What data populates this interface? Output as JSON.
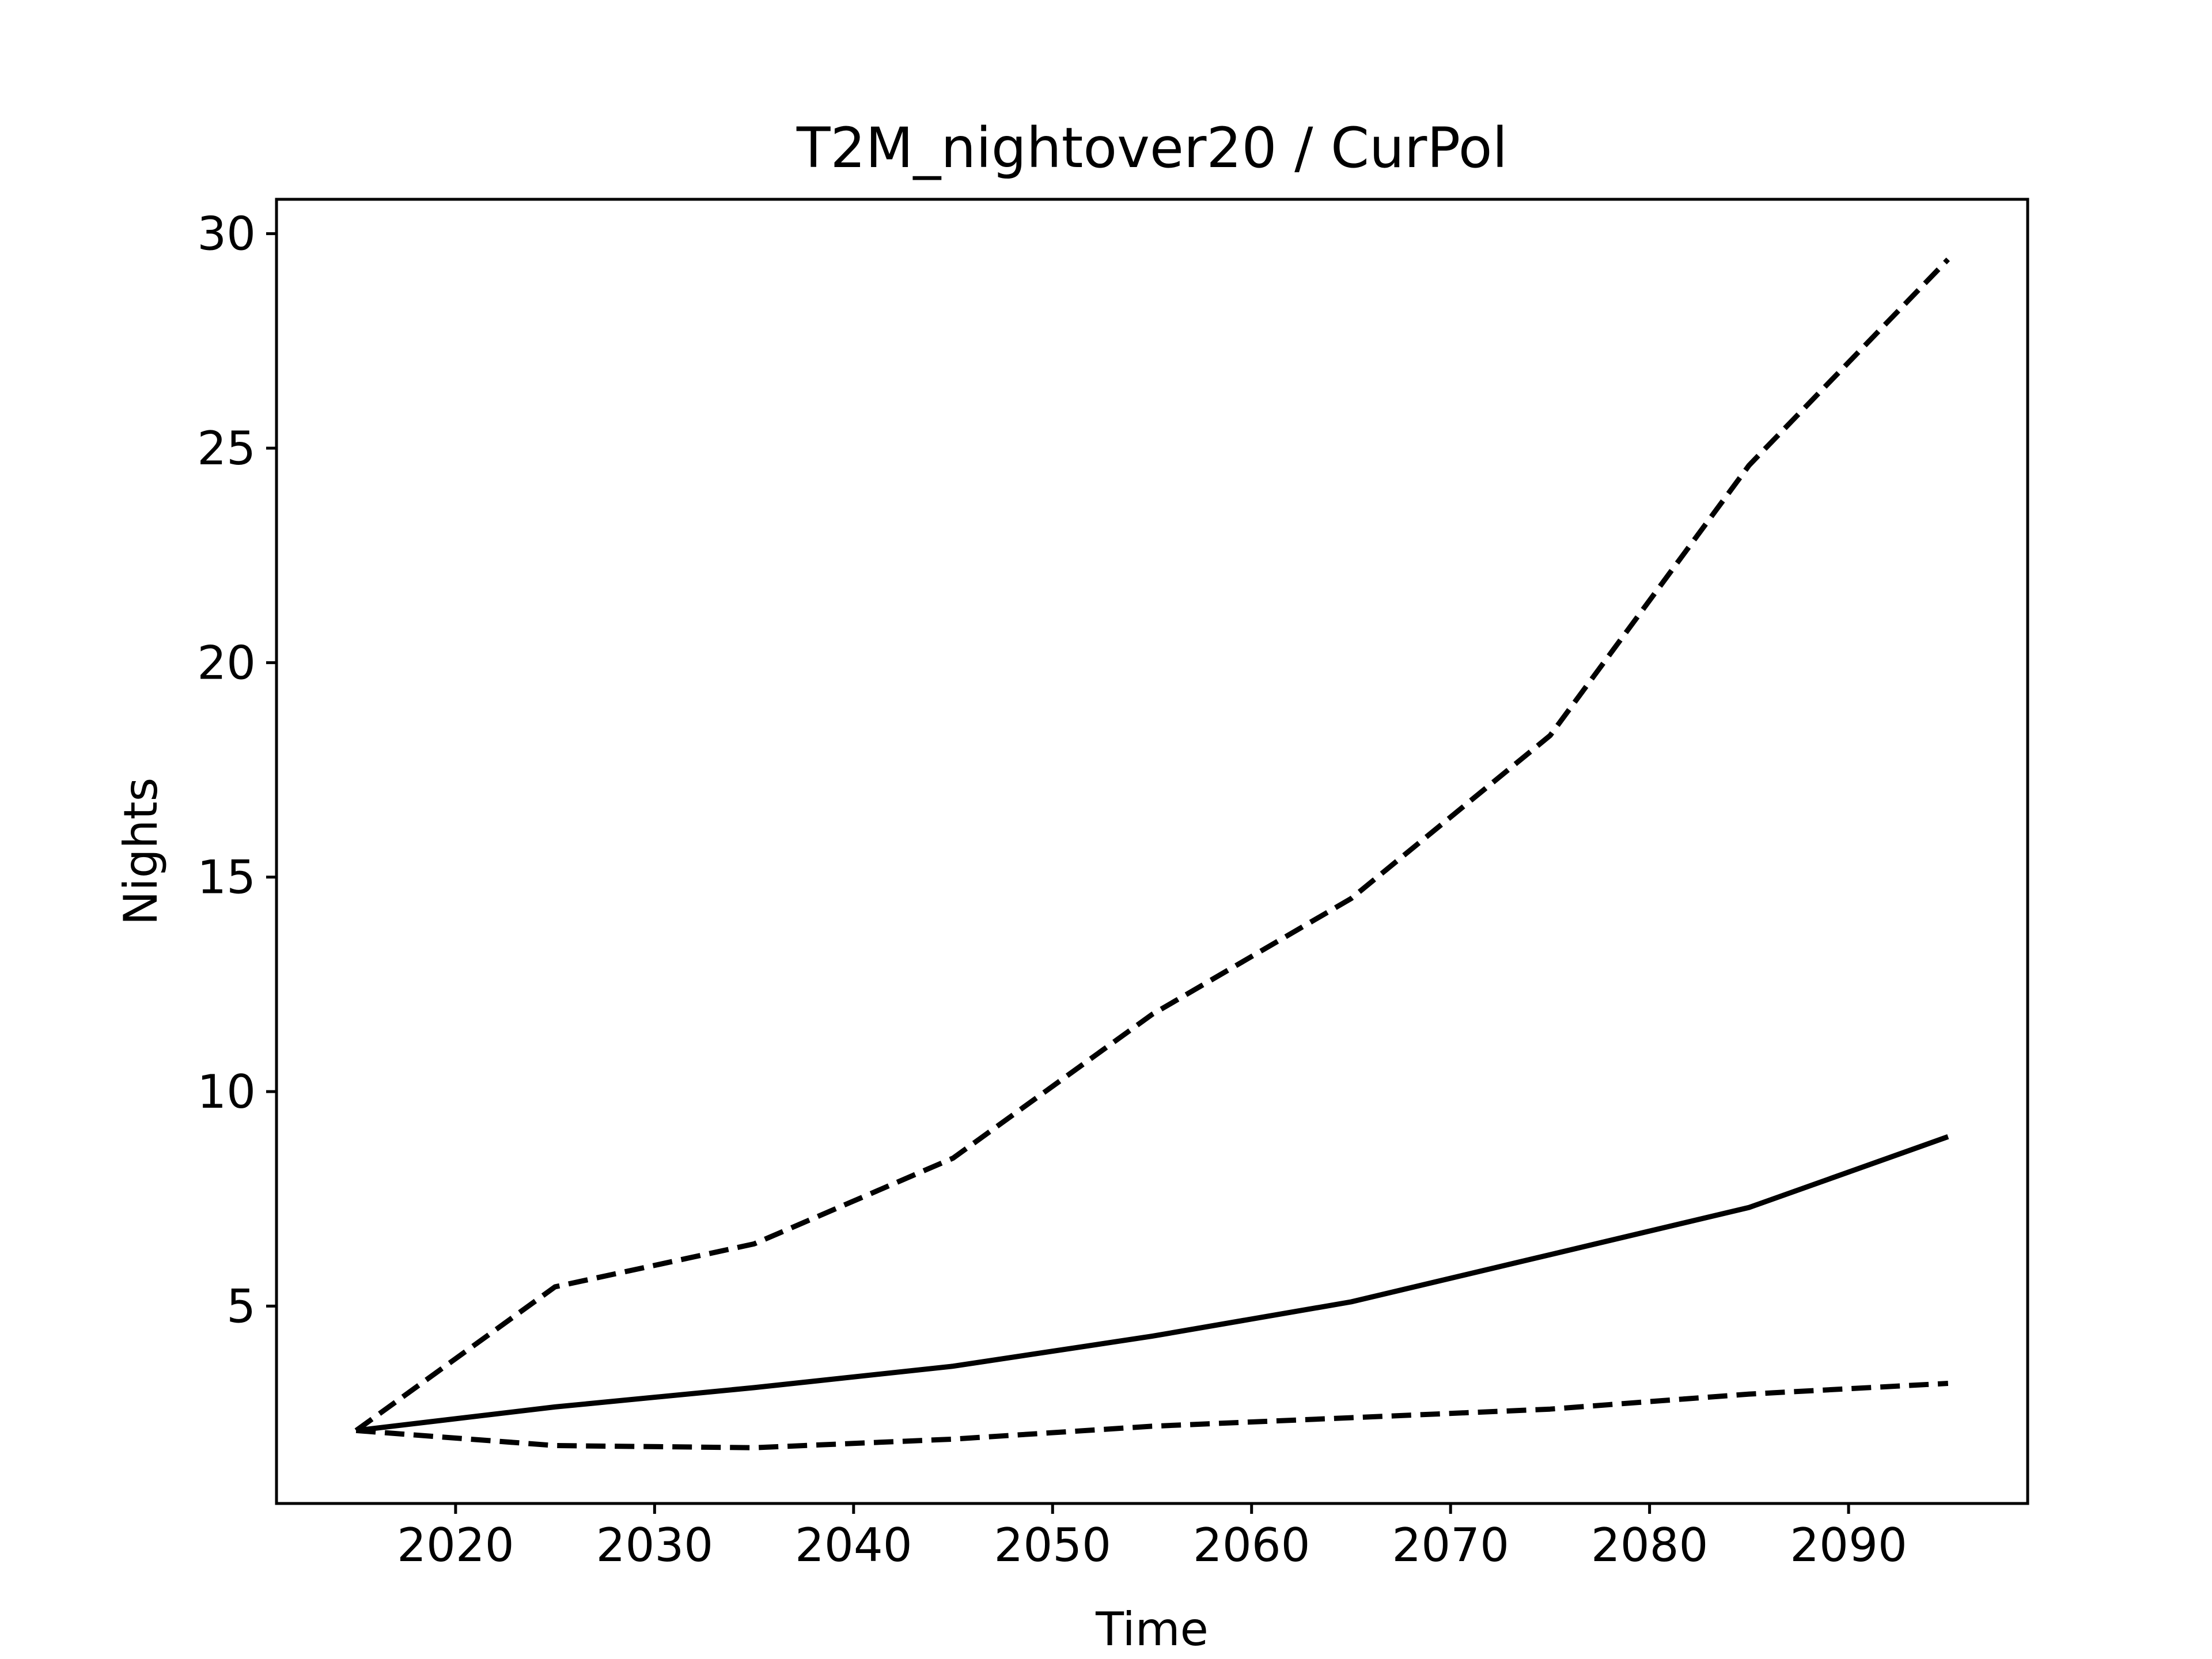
{
  "chart_data": {
    "type": "line",
    "title": "T2M_nightover20 / CurPol",
    "xlabel": "Time",
    "ylabel": "Nights",
    "xlim": [
      2011,
      2099
    ],
    "ylim": [
      0.4,
      30.8
    ],
    "xticks": [
      2020,
      2030,
      2040,
      2050,
      2060,
      2070,
      2080,
      2090
    ],
    "yticks": [
      5,
      10,
      15,
      20,
      25,
      30
    ],
    "grid": false,
    "legend": false,
    "x": [
      2015,
      2025,
      2035,
      2045,
      2055,
      2065,
      2075,
      2085,
      2095
    ],
    "series": [
      {
        "style": "dashed",
        "color": "#000000",
        "values": [
          2.1,
          5.45,
          6.45,
          8.45,
          11.8,
          14.5,
          18.3,
          24.6,
          29.4
        ]
      },
      {
        "style": "solid",
        "color": "#000000",
        "values": [
          2.1,
          2.65,
          3.1,
          3.6,
          4.3,
          5.1,
          6.2,
          7.3,
          8.95
        ]
      },
      {
        "style": "dashed",
        "color": "#000000",
        "values": [
          2.1,
          1.75,
          1.7,
          1.9,
          2.2,
          2.4,
          2.6,
          2.95,
          3.2
        ]
      }
    ]
  }
}
